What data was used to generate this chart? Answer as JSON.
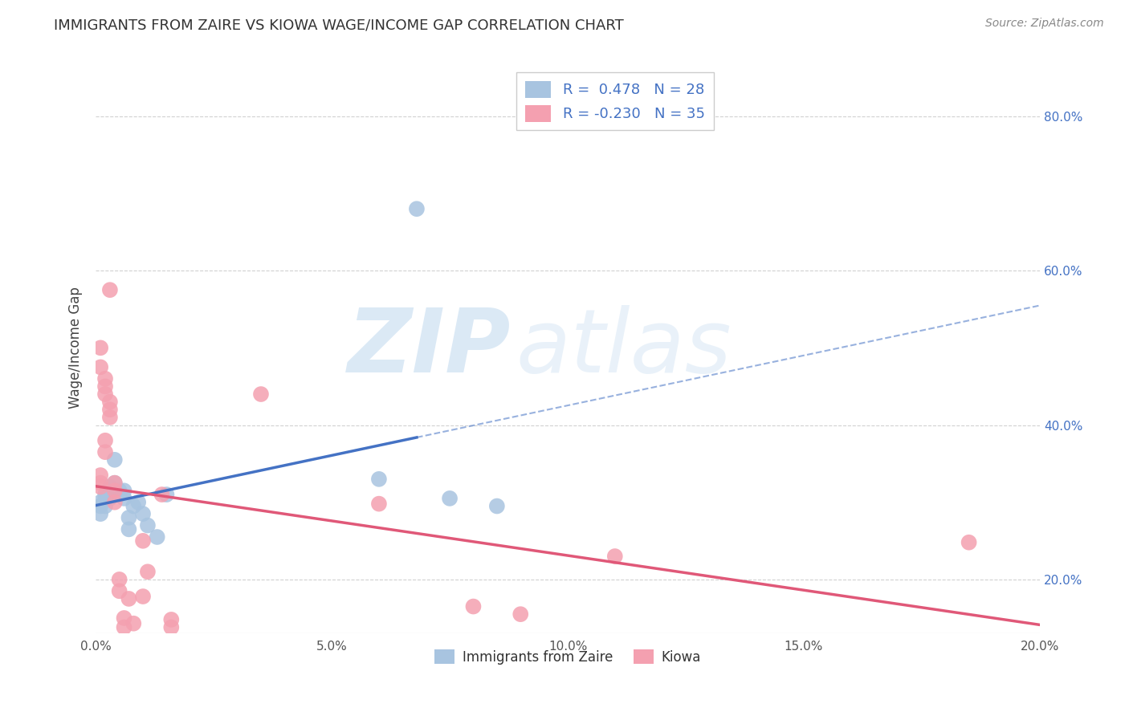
{
  "title": "IMMIGRANTS FROM ZAIRE VS KIOWA WAGE/INCOME GAP CORRELATION CHART",
  "source": "Source: ZipAtlas.com",
  "ylabel": "Wage/Income Gap",
  "legend_labels": [
    "Immigrants from Zaire",
    "Kiowa"
  ],
  "r_zaire": 0.478,
  "n_zaire": 28,
  "r_kiowa": -0.23,
  "n_kiowa": 35,
  "color_zaire": "#a8c4e0",
  "color_kiowa": "#f4a0b0",
  "line_color_zaire": "#4472c4",
  "line_color_kiowa": "#e05878",
  "xmin": 0.0,
  "xmax": 0.2,
  "ymin": 0.13,
  "ymax": 0.87,
  "zaire_dots": [
    [
      0.001,
      0.295
    ],
    [
      0.001,
      0.285
    ],
    [
      0.001,
      0.3
    ],
    [
      0.002,
      0.31
    ],
    [
      0.002,
      0.305
    ],
    [
      0.002,
      0.295
    ],
    [
      0.003,
      0.32
    ],
    [
      0.003,
      0.31
    ],
    [
      0.003,
      0.305
    ],
    [
      0.004,
      0.355
    ],
    [
      0.004,
      0.31
    ],
    [
      0.004,
      0.325
    ],
    [
      0.005,
      0.31
    ],
    [
      0.005,
      0.315
    ],
    [
      0.006,
      0.315
    ],
    [
      0.006,
      0.305
    ],
    [
      0.007,
      0.28
    ],
    [
      0.007,
      0.265
    ],
    [
      0.008,
      0.295
    ],
    [
      0.009,
      0.3
    ],
    [
      0.01,
      0.285
    ],
    [
      0.011,
      0.27
    ],
    [
      0.013,
      0.255
    ],
    [
      0.015,
      0.31
    ],
    [
      0.06,
      0.33
    ],
    [
      0.068,
      0.68
    ],
    [
      0.075,
      0.305
    ],
    [
      0.085,
      0.295
    ]
  ],
  "kiowa_dots": [
    [
      0.001,
      0.335
    ],
    [
      0.001,
      0.325
    ],
    [
      0.001,
      0.5
    ],
    [
      0.001,
      0.475
    ],
    [
      0.001,
      0.32
    ],
    [
      0.002,
      0.46
    ],
    [
      0.002,
      0.45
    ],
    [
      0.002,
      0.44
    ],
    [
      0.002,
      0.38
    ],
    [
      0.002,
      0.365
    ],
    [
      0.003,
      0.43
    ],
    [
      0.003,
      0.42
    ],
    [
      0.003,
      0.41
    ],
    [
      0.003,
      0.575
    ],
    [
      0.004,
      0.325
    ],
    [
      0.004,
      0.315
    ],
    [
      0.004,
      0.3
    ],
    [
      0.005,
      0.2
    ],
    [
      0.005,
      0.185
    ],
    [
      0.006,
      0.15
    ],
    [
      0.006,
      0.138
    ],
    [
      0.007,
      0.175
    ],
    [
      0.008,
      0.143
    ],
    [
      0.01,
      0.25
    ],
    [
      0.01,
      0.178
    ],
    [
      0.011,
      0.21
    ],
    [
      0.014,
      0.31
    ],
    [
      0.016,
      0.148
    ],
    [
      0.016,
      0.138
    ],
    [
      0.035,
      0.44
    ],
    [
      0.06,
      0.298
    ],
    [
      0.08,
      0.165
    ],
    [
      0.09,
      0.155
    ],
    [
      0.11,
      0.23
    ],
    [
      0.185,
      0.248
    ]
  ],
  "grid_color": "#cccccc",
  "background_color": "#ffffff",
  "title_color": "#333333",
  "source_color": "#888888",
  "watermark_zip": "ZIP",
  "watermark_atlas": "atlas"
}
